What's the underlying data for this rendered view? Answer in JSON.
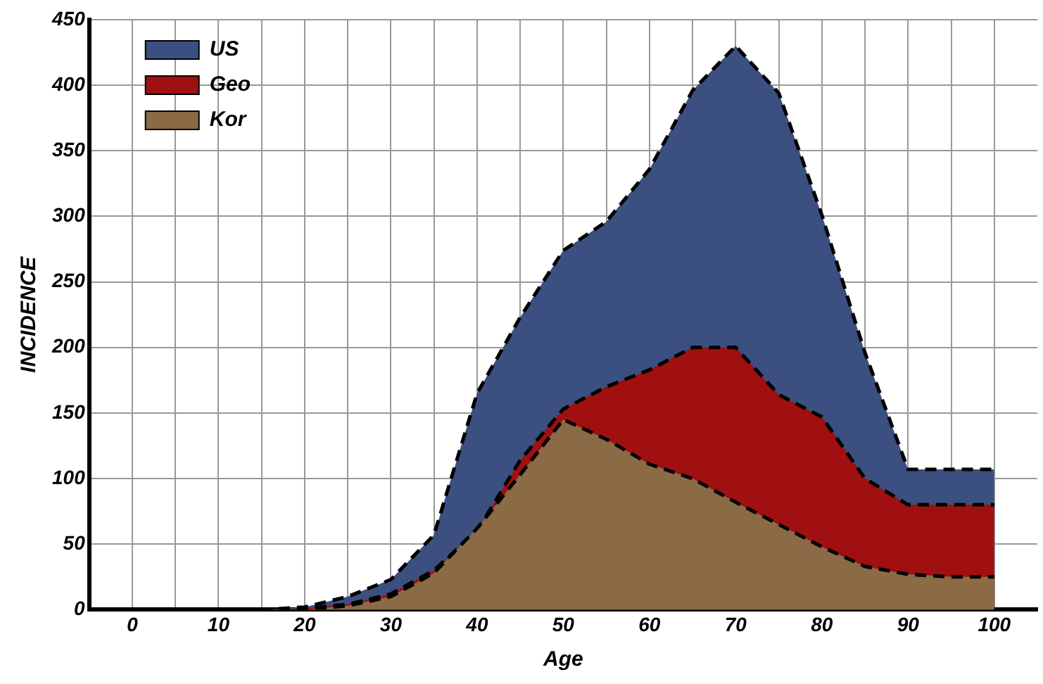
{
  "chart_data": {
    "type": "area",
    "xlabel": "Age",
    "ylabel": "INCIDENCE",
    "x": [
      0,
      5,
      10,
      15,
      20,
      25,
      30,
      35,
      40,
      45,
      50,
      55,
      60,
      65,
      70,
      75,
      80,
      85,
      90,
      95,
      100
    ],
    "series": [
      {
        "name": "US",
        "color": "#3b4f80",
        "values": [
          0,
          0,
          0,
          0,
          2,
          10,
          23,
          57,
          165,
          223,
          274,
          296,
          336,
          396,
          430,
          394,
          301,
          196,
          107,
          107,
          107
        ]
      },
      {
        "name": "Geo",
        "color": "#a01010",
        "values": [
          0,
          0,
          0,
          0,
          1,
          4,
          12,
          30,
          60,
          114,
          153,
          170,
          183,
          200,
          200,
          164,
          147,
          100,
          80,
          80,
          80
        ]
      },
      {
        "name": "Kor",
        "color": "#8b6b45",
        "values": [
          0,
          0,
          0,
          0,
          0,
          3,
          10,
          28,
          62,
          103,
          145,
          130,
          111,
          100,
          82,
          65,
          48,
          33,
          27,
          25,
          25
        ]
      }
    ],
    "xlim": [
      -5,
      105
    ],
    "xticks": [
      0,
      {
        "value": 5,
        "label": null
      },
      10,
      {
        "value": 15,
        "label": null
      },
      20,
      {
        "value": 25,
        "label": null
      },
      30,
      {
        "value": 35,
        "label": null
      },
      40,
      {
        "value": 45,
        "label": null
      },
      50,
      {
        "value": 55,
        "label": null
      },
      60,
      {
        "value": 65,
        "label": null
      },
      70,
      {
        "value": 75,
        "label": null
      },
      80,
      {
        "value": 85,
        "label": null
      },
      90,
      {
        "value": 95,
        "label": null
      },
      100
    ],
    "ylim": [
      0,
      450
    ],
    "yticks": [
      0,
      50,
      100,
      150,
      200,
      250,
      300,
      350,
      400,
      450
    ],
    "grid": true,
    "legend": "top left",
    "marker": "none",
    "line_style": "dashed"
  }
}
